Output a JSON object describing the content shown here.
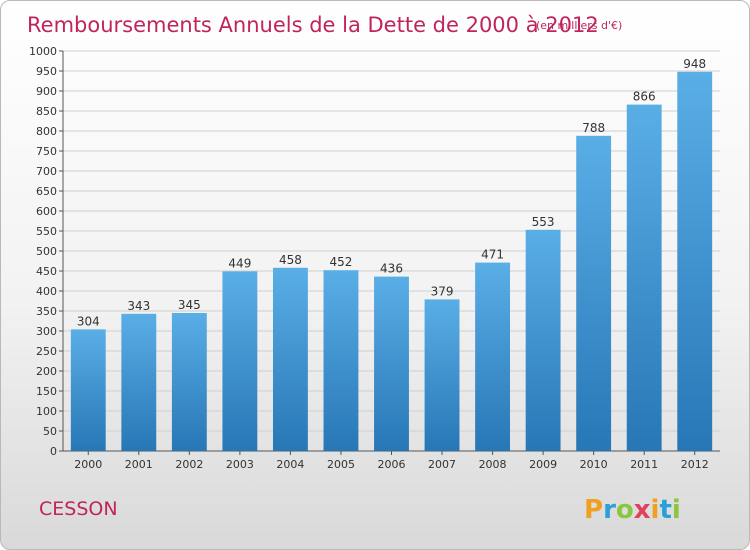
{
  "chart_data": {
    "type": "bar",
    "title": "Remboursements Annuels de la Dette de 2000 à 2012",
    "subtitle": "(en milliers d'€)",
    "categories": [
      "2000",
      "2001",
      "2002",
      "2003",
      "2004",
      "2005",
      "2006",
      "2007",
      "2008",
      "2009",
      "2010",
      "2011",
      "2012"
    ],
    "values": [
      304,
      343,
      345,
      449,
      458,
      452,
      436,
      379,
      471,
      553,
      788,
      866,
      948
    ],
    "ylim": [
      0,
      1000
    ],
    "ytick_step": 50,
    "xlabel": "",
    "ylabel": "",
    "grid": true
  },
  "place_name": "CESSON",
  "brand": {
    "letters": [
      "P",
      "r",
      "o",
      "x",
      "i",
      "t",
      "i"
    ],
    "colors": [
      "#f0a020",
      "#2a9fd8",
      "#8cc63f",
      "#e0405e",
      "#f0a020",
      "#2a9fd8",
      "#8cc63f"
    ]
  },
  "colors": {
    "bar_top": "#5aaee6",
    "bar_bottom": "#2777b6",
    "accent": "#c0245c"
  }
}
